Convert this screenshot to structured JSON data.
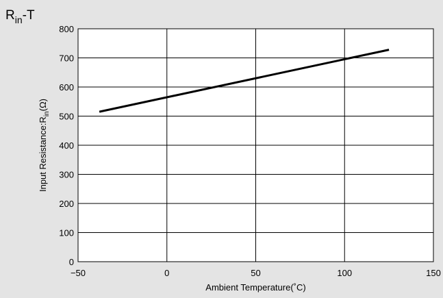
{
  "chart_data": {
    "type": "line",
    "title_main": "R",
    "title_sub": "in",
    "title_suffix": "-T",
    "xlabel": "Ambient Temperature(˚C)",
    "ylabel_main": "Input Resistance:R",
    "ylabel_sub": "in",
    "ylabel_suffix": "(Ω)",
    "xlim": [
      -50,
      150
    ],
    "ylim": [
      0,
      800
    ],
    "xticks": [
      -50,
      0,
      50,
      100,
      150
    ],
    "xtick_labels": [
      "−50",
      "0",
      "50",
      "100",
      "150"
    ],
    "yticks": [
      0,
      100,
      200,
      300,
      400,
      500,
      600,
      700,
      800
    ],
    "grid": true,
    "series": [
      {
        "x": [
          -38,
          125
        ],
        "y": [
          515,
          728
        ]
      }
    ]
  }
}
